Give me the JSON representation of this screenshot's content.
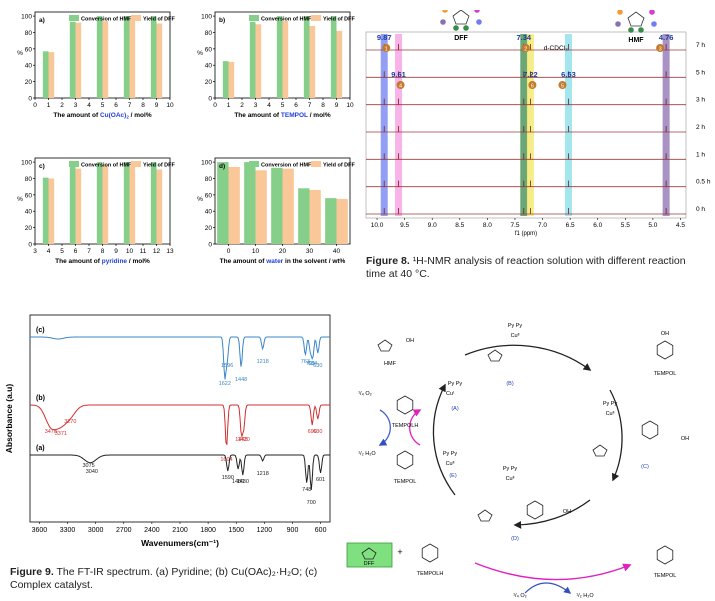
{
  "bar_panels": {
    "legend_conv": "Conversion of HMF",
    "legend_yield": "Yield of DFF",
    "colors": {
      "conv": "#86cf8a",
      "yield": "#f9c798"
    },
    "ylabel": "%",
    "a": {
      "tag": "a)",
      "xlabel_pre": "The amount of ",
      "xlabel_hl": "Cu(OAc)",
      "xlabel_sub": "2",
      "xlabel_post": " / mol%",
      "hl_color": "#1f3fd8"
    },
    "b": {
      "tag": "b)",
      "xlabel_pre": "The amount of ",
      "xlabel_hl": "TEMPOL",
      "xlabel_sub": "",
      "xlabel_post": " / mol%",
      "hl_color": "#1f3fd8"
    },
    "c": {
      "tag": "c)",
      "xlabel_pre": "The amount of ",
      "xlabel_hl": "pyridine",
      "xlabel_sub": "",
      "xlabel_post": " / mol%",
      "hl_color": "#1f3fd8"
    },
    "d": {
      "tag": "d)",
      "xlabel_pre": "The amount of ",
      "xlabel_hl": "water",
      "xlabel_sub": "",
      "xlabel_post": " in the solvent / wt%",
      "hl_color": "#1f3fd8"
    }
  },
  "chart_data": [
    {
      "type": "bar",
      "panel": "a",
      "x": [
        1,
        3,
        5,
        7,
        9
      ],
      "series": [
        {
          "name": "Conversion of HMF",
          "values": [
            57,
            93,
            100,
            100,
            100
          ]
        },
        {
          "name": "Yield of DFF",
          "values": [
            56,
            92,
            94,
            96,
            91
          ]
        }
      ],
      "xlim": [
        0,
        10
      ],
      "ylim": [
        0,
        105
      ],
      "xticks": [
        0,
        1,
        2,
        3,
        4,
        5,
        6,
        7,
        8,
        9,
        10
      ],
      "yticks": [
        0,
        20,
        40,
        60,
        80,
        100
      ]
    },
    {
      "type": "bar",
      "panel": "b",
      "x": [
        1,
        3,
        5,
        7,
        9
      ],
      "series": [
        {
          "name": "Conversion of HMF",
          "values": [
            45,
            93,
            100,
            100,
            100
          ]
        },
        {
          "name": "Yield of DFF",
          "values": [
            44,
            90,
            94,
            88,
            82
          ]
        }
      ],
      "xlim": [
        0,
        10
      ],
      "ylim": [
        0,
        105
      ],
      "xticks": [
        0,
        1,
        2,
        3,
        4,
        5,
        6,
        7,
        8,
        9,
        10
      ],
      "yticks": [
        0,
        20,
        40,
        60,
        80,
        100
      ]
    },
    {
      "type": "bar",
      "panel": "c",
      "x": [
        4,
        6,
        8,
        10,
        12
      ],
      "series": [
        {
          "name": "Conversion of HMF",
          "values": [
            81,
            95,
            100,
            100,
            100
          ]
        },
        {
          "name": "Yield of DFF",
          "values": [
            80,
            92,
            96,
            95,
            91
          ]
        }
      ],
      "xlim": [
        3,
        13
      ],
      "ylim": [
        0,
        105
      ],
      "xticks": [
        3,
        4,
        5,
        6,
        7,
        8,
        9,
        10,
        11,
        12,
        13
      ],
      "yticks": [
        0,
        20,
        40,
        60,
        80,
        100
      ]
    },
    {
      "type": "bar",
      "panel": "d",
      "x": [
        0,
        10,
        20,
        30,
        40
      ],
      "series": [
        {
          "name": "Conversion of HMF",
          "values": [
            100,
            100,
            93,
            68,
            56
          ]
        },
        {
          "name": "Yield of DFF",
          "values": [
            94,
            90,
            92,
            66,
            55
          ]
        }
      ],
      "xlim": [
        -5,
        45
      ],
      "ylim": [
        0,
        105
      ],
      "xticks": [
        0,
        10,
        20,
        30,
        40
      ],
      "yticks": [
        0,
        20,
        40,
        60,
        80,
        100
      ]
    },
    {
      "type": "line",
      "panel": "nmr",
      "xlabel": "f1 (ppm)",
      "xlim": [
        10.2,
        4.4
      ],
      "xticks": [
        10.0,
        9.5,
        9.0,
        8.5,
        8.0,
        7.5,
        7.0,
        6.5,
        6.0,
        5.5,
        5.0,
        4.5
      ],
      "traces": [
        "7 h",
        "5 h",
        "3 h",
        "2 h",
        "1 h",
        "0.5 h",
        "0 h"
      ],
      "peaks": [
        {
          "ppm": 9.87,
          "label": "9.87",
          "tag": "1",
          "color": "#6f7ff0"
        },
        {
          "ppm": 9.61,
          "label": "9.61",
          "tag": "4",
          "color": "#f59be0"
        },
        {
          "ppm": 7.34,
          "label": "7.34",
          "tag": "2",
          "color": "#3a8a48"
        },
        {
          "ppm": 7.22,
          "label": "7.22",
          "tag": "6",
          "color": "#f3e660"
        },
        {
          "ppm": 6.53,
          "label": "6.53",
          "tag": "5",
          "color": "#86dde8"
        },
        {
          "ppm": 4.76,
          "label": "4.76",
          "tag": "3",
          "color": "#8b6fb0"
        }
      ],
      "solvent_label": "d-CDCl₃"
    },
    {
      "type": "line",
      "panel": "ftir",
      "xlabel": "Wavenumers(cm⁻¹)",
      "ylabel": "Absorbance (a.u)",
      "xlim": [
        3700,
        500
      ],
      "xticks": [
        3600,
        3300,
        3000,
        2700,
        2400,
        2100,
        1800,
        1500,
        1200,
        900,
        600
      ],
      "series": [
        {
          "name": "(c)",
          "color": "#3a86c8",
          "labels": [
            "1596",
            "1448",
            "1622",
            "1218",
            "763",
            "709",
            "684",
            "630"
          ]
        },
        {
          "name": "(b)",
          "color": "#d03030",
          "labels": [
            "3478",
            "3371",
            "3270",
            "1604",
            "1445",
            "1420",
            "690",
            "630"
          ]
        },
        {
          "name": "(a)",
          "color": "#222222",
          "labels": [
            "3075",
            "3040",
            "1590",
            "1480",
            "1430",
            "1218",
            "748",
            "700",
            "601"
          ]
        }
      ]
    }
  ],
  "nmr": {
    "structure_dff": "DFF",
    "structure_hmf": "HMF",
    "solvent": "d-CDCl₃",
    "caption_bold": "Figure 8.",
    "caption_text": "¹H-NMR analysis of reaction solution with different reaction time at 40 °C."
  },
  "ftir": {
    "caption_bold": "Figure 9.",
    "caption_text": "The FT-IR spectrum. (a) Pyridine; (b) Cu(OAc)₂·H₂O; (c) Complex catalyst."
  },
  "mechanism": {
    "labels": {
      "A": "(A)",
      "B": "(B)",
      "C": "(C)",
      "D": "(D)",
      "E": "(E)"
    },
    "hmf": "HMF",
    "tempol": "TEMPOL",
    "tempolh": "TEMPOLH",
    "dff": "DFF",
    "o2": "¹/₄ O₂",
    "h2o": "¹/₂ H₂O",
    "py": "Py",
    "cu2": "Cu",
    "oh": "OH"
  }
}
